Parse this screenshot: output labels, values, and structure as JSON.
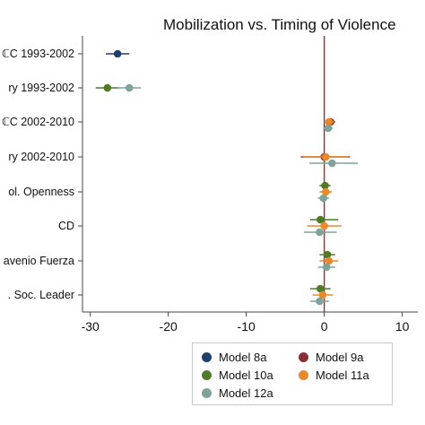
{
  "chart_data": {
    "type": "scatter",
    "subtype": "coefficient-plot",
    "title": "Mobilization vs. Timing of Violence",
    "xlabel": "",
    "ylabel": "",
    "xlim": [
      -31,
      12
    ],
    "xticks": [
      -30,
      -20,
      -10,
      0,
      10
    ],
    "x_reference_line": 0,
    "reference_line_color": "#b22222",
    "grid": false,
    "legend_position": "bottom-right",
    "categories": [
      "ℂC 1993-2002",
      "ry 1993-2002",
      "ℂC 2002-2010",
      "ry 2002-2010",
      "ol. Openness",
      "CD",
      "avenio Fuerza",
      ". Soc. Leader"
    ],
    "series": [
      {
        "name": "Model 8a",
        "color": "#1f3f6e",
        "marker": "circle",
        "points": [
          {
            "category": 0,
            "x": -26.5,
            "ci": [
              -28.0,
              -25.0
            ]
          }
        ]
      },
      {
        "name": "Model 9a",
        "color": "#8b2e34",
        "marker": "circle",
        "points": [
          {
            "category": 2,
            "x": 0.8,
            "ci": [
              0.2,
              1.4
            ]
          },
          {
            "category": 3,
            "x": 0.0,
            "ci": [
              -3.0,
              3.3
            ]
          }
        ]
      },
      {
        "name": "Model 10a",
        "color": "#4f7a28",
        "marker": "circle",
        "points": [
          {
            "category": 1,
            "x": -27.8,
            "ci": [
              -29.3,
              -26.3
            ]
          },
          {
            "category": 4,
            "x": 0.1,
            "ci": [
              -0.6,
              0.8
            ]
          },
          {
            "category": 5,
            "x": -0.5,
            "ci": [
              -1.8,
              1.8
            ]
          },
          {
            "category": 6,
            "x": 0.4,
            "ci": [
              -0.6,
              1.4
            ]
          },
          {
            "category": 7,
            "x": -0.5,
            "ci": [
              -1.8,
              0.8
            ]
          }
        ]
      },
      {
        "name": "Model 11a",
        "color": "#e8892b",
        "marker": "circle",
        "points": [
          {
            "category": 2,
            "x": 0.6,
            "ci": [
              0.0,
              1.2
            ]
          },
          {
            "category": 3,
            "x": 0.2,
            "ci": [
              -2.7,
              3.1
            ]
          },
          {
            "category": 4,
            "x": 0.2,
            "ci": [
              -0.6,
              1.0
            ]
          },
          {
            "category": 5,
            "x": 0.0,
            "ci": [
              -2.2,
              2.2
            ]
          },
          {
            "category": 6,
            "x": 0.6,
            "ci": [
              -0.6,
              1.8
            ]
          },
          {
            "category": 7,
            "x": -0.2,
            "ci": [
              -1.5,
              1.1
            ]
          }
        ]
      },
      {
        "name": "Model 12a",
        "color": "#7fa39a",
        "marker": "circle",
        "points": [
          {
            "category": 1,
            "x": -25.0,
            "ci": [
              -26.5,
              -23.5
            ]
          },
          {
            "category": 2,
            "x": 0.5,
            "ci": [
              -0.1,
              1.1
            ]
          },
          {
            "category": 3,
            "x": 1.0,
            "ci": [
              -1.9,
              4.3
            ]
          },
          {
            "category": 4,
            "x": -0.1,
            "ci": [
              -0.8,
              0.6
            ]
          },
          {
            "category": 5,
            "x": -0.6,
            "ci": [
              -2.6,
              1.6
            ]
          },
          {
            "category": 6,
            "x": 0.3,
            "ci": [
              -0.8,
              1.4
            ]
          },
          {
            "category": 7,
            "x": -0.6,
            "ci": [
              -1.8,
              0.6
            ]
          }
        ]
      }
    ]
  }
}
